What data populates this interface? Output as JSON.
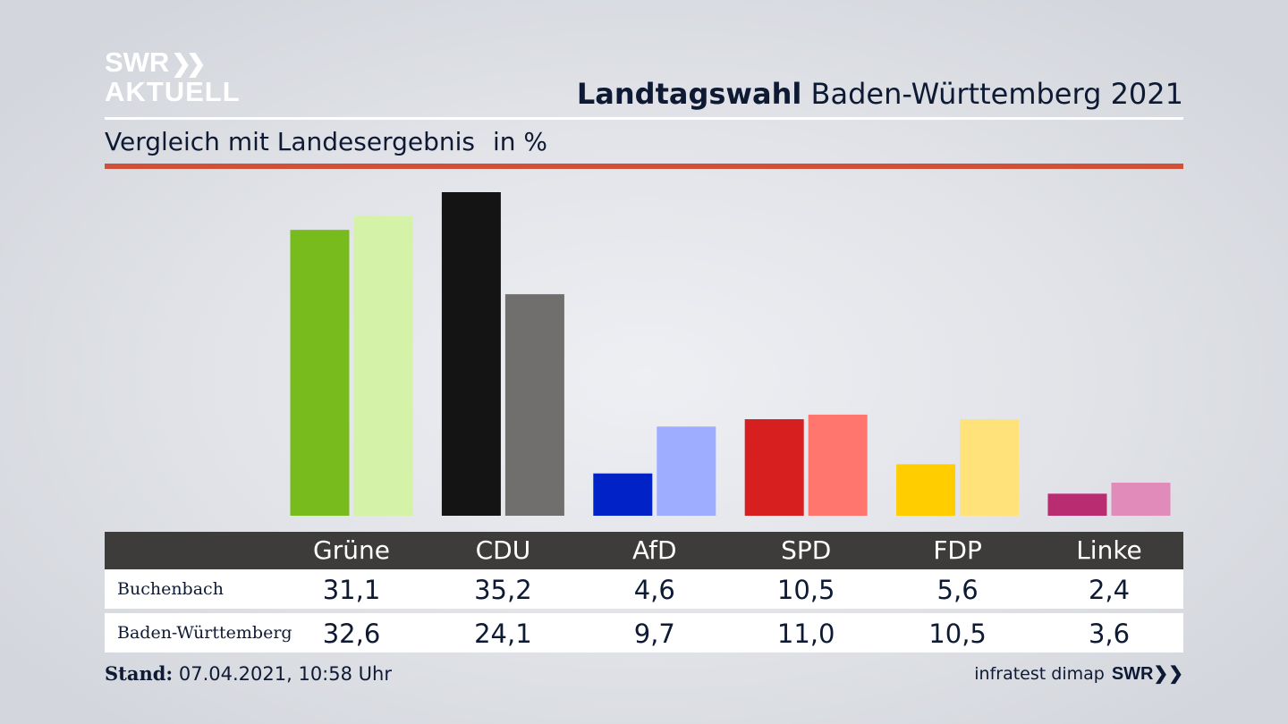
{
  "logo": {
    "line1": "SWR",
    "chevrons": "❯❯",
    "line2": "AKTUELL"
  },
  "header": {
    "title_bold": "Landtagswahl",
    "title_rest": "Baden-Württemberg 2021",
    "subtitle": "Vergleich mit Landesergebnis",
    "unit": "in %"
  },
  "table": {
    "row1_label": "Buchenbach",
    "row2_label": "Baden-Württemberg"
  },
  "footer": {
    "stand_label": "Stand:",
    "stand_value": "07.04.2021, 10:58 Uhr",
    "source": "infratest dimap",
    "source_logo": "SWR",
    "source_chevrons": "❯❯"
  },
  "colors": {
    "accent_red": "#d0503a",
    "table_header": "#3d3c3a"
  },
  "chart_data": {
    "type": "bar",
    "title": "Landtagswahl Baden-Württemberg 2021",
    "subtitle": "Vergleich mit Landesergebnis",
    "ylabel": "in %",
    "ylim": [
      0,
      36
    ],
    "grid": false,
    "categories": [
      "Grüne",
      "CDU",
      "AfD",
      "SPD",
      "FDP",
      "Linke"
    ],
    "series": [
      {
        "name": "Buchenbach",
        "values": [
          31.1,
          35.2,
          4.6,
          10.5,
          5.6,
          2.4
        ],
        "labels": [
          "31,1",
          "35,2",
          "4,6",
          "10,5",
          "5,6",
          "2,4"
        ],
        "colors": [
          "#77bc1c",
          "#141414",
          "#0022c7",
          "#d71f1f",
          "#ffcd00",
          "#b92c72"
        ]
      },
      {
        "name": "Baden-Württemberg",
        "values": [
          32.6,
          24.1,
          9.7,
          11.0,
          10.5,
          3.6
        ],
        "labels": [
          "32,6",
          "24,1",
          "9,7",
          "11,0",
          "10,5",
          "3,6"
        ],
        "colors": [
          "#d4f3a8",
          "#706f6d",
          "#9eadff",
          "#ff766e",
          "#ffe27a",
          "#e08bba"
        ]
      }
    ]
  }
}
